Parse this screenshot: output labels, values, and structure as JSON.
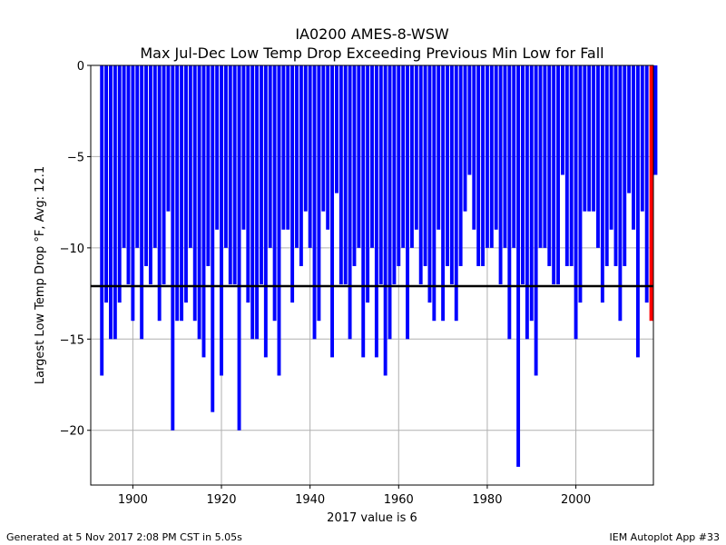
{
  "chart_data": {
    "type": "bar",
    "title": "IA0200 AMES-8-WSW",
    "subtitle": "Max Jul-Dec Low Temp Drop Exceeding Previous Min Low for Fall",
    "xlabel": "2017 value is 6",
    "ylabel": "Largest Low Temp Drop  °F, Avg: 12.1",
    "xlim": [
      1890.5,
      2017.5
    ],
    "ylim": [
      -23,
      0
    ],
    "xticks": [
      1900,
      1920,
      1940,
      1960,
      1980,
      2000
    ],
    "yticks": [
      0,
      -5,
      -10,
      -15,
      -20
    ],
    "ytick_labels": [
      "0",
      "−5",
      "−10",
      "−15",
      "−20"
    ],
    "grid": true,
    "average_line": -12.1,
    "start_year": 1893,
    "values": [
      -17,
      -13,
      -15,
      -15,
      -13,
      -10,
      -12,
      -14,
      -10,
      -15,
      -11,
      -12,
      -10,
      -14,
      -12,
      -8,
      -20,
      -14,
      -14,
      -13,
      -10,
      -14,
      -15,
      -16,
      -11,
      -19,
      -9,
      -17,
      -10,
      -12,
      -12,
      -20,
      -9,
      -13,
      -15,
      -15,
      -12,
      -16,
      -10,
      -14,
      -17,
      -9,
      -9,
      -13,
      -10,
      -11,
      -8,
      -10,
      -15,
      -14,
      -8,
      -9,
      -16,
      -7,
      -12,
      -12,
      -15,
      -11,
      -10,
      -16,
      -13,
      -10,
      -16,
      -12,
      -17,
      -15,
      -12,
      -11,
      -10,
      -15,
      -10,
      -9,
      -12,
      -11,
      -13,
      -14,
      -9,
      -14,
      -11,
      -12,
      -14,
      -11,
      -8,
      -6,
      -9,
      -11,
      -11,
      -10,
      -10,
      -9,
      -12,
      -10,
      -15,
      -10,
      -22,
      -12,
      -15,
      -14,
      -17,
      -10,
      -10,
      -11,
      -12,
      -12,
      -6,
      -11,
      -11,
      -15,
      -13,
      -8,
      -8,
      -8,
      -10,
      -13,
      -11,
      -9,
      -11,
      -14,
      -11,
      -7,
      -9,
      -16,
      -8,
      -13,
      -14,
      -6
    ],
    "series": [
      {
        "name": "",
        "color": "#0000ff"
      },
      {
        "name": "",
        "color": "#ff0000",
        "highlight_year": 2017
      }
    ]
  },
  "footer": {
    "generated": "Generated at 5 Nov 2017 2:08 PM CST in 5.05s",
    "app": "IEM Autoplot App #33"
  }
}
